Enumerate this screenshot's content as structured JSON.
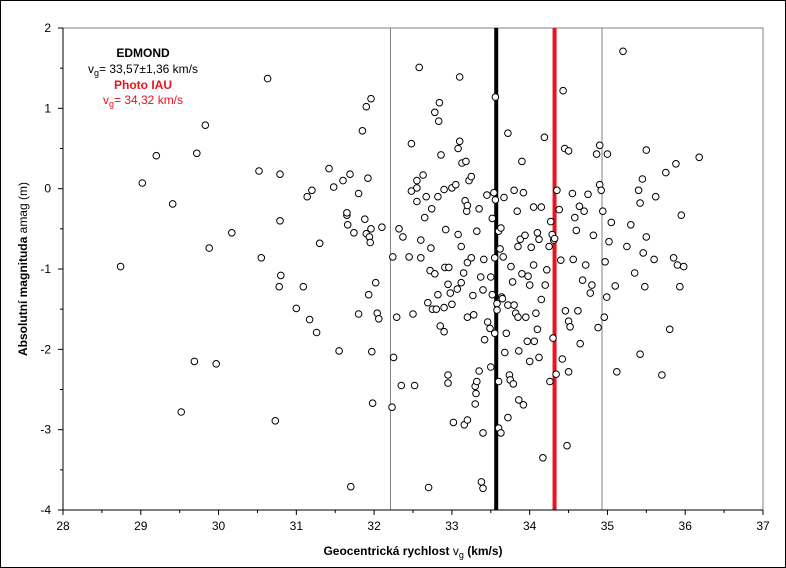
{
  "chart_data": {
    "type": "scatter",
    "xlabel": "Geocentrická rychlost",
    "xlabel_sym": "v",
    "xlabel_sub": "g",
    "xlabel_unit": "(km/s)",
    "ylabel": "Absolutní magnituda",
    "ylabel_sym": "amag",
    "ylabel_unit": "(m)",
    "xlim": [
      28,
      37
    ],
    "ylim": [
      -4,
      2
    ],
    "xticks": [
      "28",
      "29",
      "30",
      "31",
      "32",
      "33",
      "34",
      "35",
      "36",
      "37"
    ],
    "yticks": [
      "-4",
      "-3",
      "-2",
      "-1",
      "0",
      "1",
      "2"
    ],
    "grid": false,
    "vlines": [
      {
        "x": 32.21,
        "color": "#808080",
        "label": "edmond-minus-sigma"
      },
      {
        "x": 33.57,
        "color": "#000000",
        "label": "edmond-mean"
      },
      {
        "x": 34.32,
        "color": "#e8141e",
        "label": "photo-iau"
      },
      {
        "x": 34.93,
        "color": "#808080",
        "label": "edmond-plus-sigma"
      }
    ],
    "annotations": {
      "edmond_title": "EDMOND",
      "edmond_sym": "v",
      "edmond_sub": "g",
      "edmond_value": "= 33,57±1,36  km/s",
      "iau_title": "Photo IAU",
      "iau_sym": "v",
      "iau_sub": "g",
      "iau_value": "=  34,32 km/s"
    },
    "points": [
      [
        28.74,
        -0.97
      ],
      [
        29.02,
        0.07
      ],
      [
        29.2,
        0.41
      ],
      [
        29.41,
        -0.19
      ],
      [
        29.52,
        -2.78
      ],
      [
        29.69,
        -2.15
      ],
      [
        29.72,
        0.44
      ],
      [
        29.83,
        0.79
      ],
      [
        29.88,
        -0.74
      ],
      [
        29.97,
        -2.18
      ],
      [
        30.17,
        -0.55
      ],
      [
        30.52,
        0.22
      ],
      [
        30.55,
        -0.86
      ],
      [
        30.63,
        1.37
      ],
      [
        30.73,
        -2.89
      ],
      [
        30.79,
        0.18
      ],
      [
        30.79,
        -0.4
      ],
      [
        30.8,
        -1.08
      ],
      [
        30.78,
        -1.22
      ],
      [
        31.0,
        -1.49
      ],
      [
        31.09,
        -1.22
      ],
      [
        31.14,
        -0.1
      ],
      [
        31.17,
        -1.63
      ],
      [
        31.2,
        -0.02
      ],
      [
        31.26,
        -1.79
      ],
      [
        31.3,
        -0.68
      ],
      [
        31.42,
        0.25
      ],
      [
        31.48,
        0.02
      ],
      [
        31.55,
        -2.02
      ],
      [
        31.6,
        0.1
      ],
      [
        31.65,
        -0.33
      ],
      [
        31.65,
        -0.3
      ],
      [
        31.66,
        -0.45
      ],
      [
        31.69,
        0.18
      ],
      [
        31.7,
        -3.71
      ],
      [
        31.74,
        -0.55
      ],
      [
        31.8,
        -1.56
      ],
      [
        31.8,
        -0.06
      ],
      [
        31.85,
        0.72
      ],
      [
        31.88,
        -0.38
      ],
      [
        31.9,
        -0.56
      ],
      [
        31.9,
        1.02
      ],
      [
        31.92,
        0.13
      ],
      [
        31.93,
        -1.32
      ],
      [
        31.94,
        -0.6
      ],
      [
        31.96,
        1.12
      ],
      [
        31.95,
        -0.67
      ],
      [
        31.96,
        -0.5
      ],
      [
        31.97,
        -2.03
      ],
      [
        31.98,
        -2.67
      ],
      [
        32.02,
        -1.17
      ],
      [
        32.04,
        -1.55
      ],
      [
        32.06,
        -1.62
      ],
      [
        32.1,
        -0.48
      ],
      [
        32.23,
        -2.72
      ],
      [
        32.24,
        -0.85
      ],
      [
        32.25,
        -2.1
      ],
      [
        32.29,
        -1.6
      ],
      [
        32.32,
        -0.5
      ],
      [
        32.35,
        -2.45
      ],
      [
        32.37,
        -0.6
      ],
      [
        32.45,
        -0.85
      ],
      [
        32.48,
        0.56
      ],
      [
        32.48,
        -0.03
      ],
      [
        32.5,
        -1.56
      ],
      [
        32.52,
        -2.45
      ],
      [
        32.55,
        -0.16
      ],
      [
        32.55,
        0.01
      ],
      [
        32.55,
        0.1
      ],
      [
        32.58,
        1.51
      ],
      [
        32.6,
        -0.64
      ],
      [
        32.6,
        -0.86
      ],
      [
        32.63,
        0.17
      ],
      [
        32.65,
        -0.36
      ],
      [
        32.67,
        -0.1
      ],
      [
        32.69,
        -1.42
      ],
      [
        32.7,
        -3.72
      ],
      [
        32.72,
        -1.02
      ],
      [
        32.73,
        -0.74
      ],
      [
        32.74,
        -0.25
      ],
      [
        32.75,
        -1.5
      ],
      [
        32.78,
        -1.06
      ],
      [
        32.78,
        0.95
      ],
      [
        32.8,
        -1.5
      ],
      [
        32.82,
        -1.32
      ],
      [
        32.82,
        -0.1
      ],
      [
        32.83,
        0.84
      ],
      [
        32.84,
        1.07
      ],
      [
        32.85,
        -1.71
      ],
      [
        32.86,
        0.42
      ],
      [
        32.9,
        -0.01
      ],
      [
        32.9,
        -1.78
      ],
      [
        32.9,
        -1.48
      ],
      [
        32.91,
        -0.98
      ],
      [
        32.92,
        -0.51
      ],
      [
        32.95,
        -2.32
      ],
      [
        32.95,
        -1.19
      ],
      [
        32.95,
        -2.42
      ],
      [
        32.96,
        -0.98
      ],
      [
        32.98,
        -1.3
      ],
      [
        33.0,
        0.01
      ],
      [
        33.0,
        -1.44
      ],
      [
        33.02,
        -2.91
      ],
      [
        33.05,
        0.05
      ],
      [
        33.07,
        -1.25
      ],
      [
        33.08,
        0.5
      ],
      [
        33.08,
        -0.57
      ],
      [
        33.1,
        0.59
      ],
      [
        33.1,
        1.39
      ],
      [
        33.12,
        -0.72
      ],
      [
        33.12,
        -1.17
      ],
      [
        33.13,
        0.32
      ],
      [
        33.15,
        -1.05
      ],
      [
        33.16,
        -2.94
      ],
      [
        33.17,
        -0.15
      ],
      [
        33.18,
        0.34
      ],
      [
        33.19,
        -0.28
      ],
      [
        33.2,
        -2.88
      ],
      [
        33.2,
        -0.21
      ],
      [
        33.2,
        -1.6
      ],
      [
        33.2,
        -0.92
      ],
      [
        33.22,
        0.1
      ],
      [
        33.25,
        -0.86
      ],
      [
        33.25,
        0.15
      ],
      [
        33.27,
        -1.33
      ],
      [
        33.28,
        -1.57
      ],
      [
        33.3,
        -2.46
      ],
      [
        33.3,
        -2.68
      ],
      [
        33.31,
        -2.55
      ],
      [
        33.32,
        -0.53
      ],
      [
        33.32,
        -2.4
      ],
      [
        33.35,
        -2.27
      ],
      [
        33.35,
        -0.25
      ],
      [
        33.37,
        -1.1
      ],
      [
        33.38,
        -3.65
      ],
      [
        33.4,
        -3.04
      ],
      [
        33.4,
        -1.26
      ],
      [
        33.4,
        -3.73
      ],
      [
        33.41,
        -0.88
      ],
      [
        33.42,
        -1.88
      ],
      [
        33.45,
        -0.08
      ],
      [
        33.46,
        -1.66
      ],
      [
        33.49,
        -1.74
      ],
      [
        33.5,
        -1.1
      ],
      [
        33.5,
        -2.22
      ],
      [
        33.52,
        -1.32
      ],
      [
        33.52,
        -0.37
      ],
      [
        33.54,
        -0.05
      ],
      [
        33.55,
        -0.86
      ],
      [
        33.55,
        -1.8
      ],
      [
        33.56,
        1.14
      ],
      [
        33.56,
        -0.14
      ],
      [
        33.58,
        -1.43
      ],
      [
        33.58,
        -1.51
      ],
      [
        33.6,
        -0.53
      ],
      [
        33.6,
        -2.4
      ],
      [
        33.6,
        -2.98
      ],
      [
        33.62,
        -0.75
      ],
      [
        33.63,
        -0.49
      ],
      [
        33.63,
        -3.04
      ],
      [
        33.64,
        -1.35
      ],
      [
        33.65,
        -1.37
      ],
      [
        33.66,
        -0.85
      ],
      [
        33.67,
        -0.11
      ],
      [
        33.68,
        -2.04
      ],
      [
        33.7,
        -1.8
      ],
      [
        33.72,
        0.69
      ],
      [
        33.72,
        -1.45
      ],
      [
        33.72,
        -2.85
      ],
      [
        33.74,
        -2.32
      ],
      [
        33.75,
        -2.38
      ],
      [
        33.76,
        -0.97
      ],
      [
        33.78,
        -1.16
      ],
      [
        33.79,
        -2.43
      ],
      [
        33.8,
        -1.45
      ],
      [
        33.8,
        -0.02
      ],
      [
        33.82,
        -1.55
      ],
      [
        33.84,
        -0.28
      ],
      [
        33.85,
        -1.6
      ],
      [
        33.85,
        -0.72
      ],
      [
        33.86,
        -2.63
      ],
      [
        33.86,
        -2.02
      ],
      [
        33.88,
        -0.63
      ],
      [
        33.9,
        0.34
      ],
      [
        33.9,
        -1.06
      ],
      [
        33.92,
        -2.69
      ],
      [
        33.92,
        -0.05
      ],
      [
        33.94,
        -0.58
      ],
      [
        33.95,
        -1.6
      ],
      [
        33.97,
        -1.9
      ],
      [
        33.98,
        -1.09
      ],
      [
        34.0,
        -1.2
      ],
      [
        34.0,
        -2.15
      ],
      [
        34.02,
        -0.73
      ],
      [
        34.05,
        -0.95
      ],
      [
        34.05,
        -0.23
      ],
      [
        34.06,
        -1.9
      ],
      [
        34.08,
        -1.55
      ],
      [
        34.1,
        -0.55
      ],
      [
        34.1,
        -1.75
      ],
      [
        34.12,
        -2.1
      ],
      [
        34.12,
        -0.63
      ],
      [
        34.15,
        -0.23
      ],
      [
        34.15,
        -1.38
      ],
      [
        34.17,
        -3.35
      ],
      [
        34.19,
        0.64
      ],
      [
        34.2,
        -1.2
      ],
      [
        34.22,
        -1.01
      ],
      [
        34.25,
        -0.72
      ],
      [
        34.26,
        -2.4
      ],
      [
        34.27,
        -0.41
      ],
      [
        34.29,
        -0.57
      ],
      [
        34.3,
        -1.86
      ],
      [
        34.31,
        -0.64
      ],
      [
        34.32,
        -0.62
      ],
      [
        34.34,
        -2.31
      ],
      [
        34.35,
        -0.02
      ],
      [
        34.38,
        -0.26
      ],
      [
        34.4,
        -0.89
      ],
      [
        34.42,
        -2.12
      ],
      [
        34.43,
        1.22
      ],
      [
        34.45,
        0.5
      ],
      [
        34.46,
        -1.52
      ],
      [
        34.48,
        -3.2
      ],
      [
        34.5,
        -1.65
      ],
      [
        34.5,
        -2.28
      ],
      [
        34.5,
        0.47
      ],
      [
        34.52,
        -1.72
      ],
      [
        34.55,
        -0.06
      ],
      [
        34.56,
        -0.88
      ],
      [
        34.58,
        -0.36
      ],
      [
        34.6,
        -0.52
      ],
      [
        34.62,
        -1.52
      ],
      [
        34.64,
        -0.22
      ],
      [
        34.65,
        -1.93
      ],
      [
        34.68,
        -1.14
      ],
      [
        34.7,
        -0.28
      ],
      [
        34.72,
        -0.95
      ],
      [
        34.75,
        -0.07
      ],
      [
        34.78,
        -1.3
      ],
      [
        34.8,
        -1.2
      ],
      [
        34.82,
        -0.58
      ],
      [
        34.86,
        0.43
      ],
      [
        34.88,
        -1.73
      ],
      [
        34.9,
        0.05
      ],
      [
        34.9,
        0.54
      ],
      [
        34.92,
        -0.02
      ],
      [
        34.94,
        -0.28
      ],
      [
        34.96,
        -1.6
      ],
      [
        34.97,
        -0.91
      ],
      [
        34.99,
        -1.35
      ],
      [
        35.0,
        0.43
      ],
      [
        35.02,
        -0.66
      ],
      [
        35.05,
        -0.42
      ],
      [
        35.1,
        -1.21
      ],
      [
        35.12,
        -2.28
      ],
      [
        35.2,
        1.71
      ],
      [
        35.25,
        -0.72
      ],
      [
        35.3,
        -0.45
      ],
      [
        35.35,
        -1.05
      ],
      [
        35.4,
        -0.02
      ],
      [
        35.42,
        -2.06
      ],
      [
        35.42,
        -0.18
      ],
      [
        35.45,
        0.12
      ],
      [
        35.46,
        -0.8
      ],
      [
        35.48,
        -1.22
      ],
      [
        35.5,
        -0.6
      ],
      [
        35.5,
        0.48
      ],
      [
        35.6,
        -0.88
      ],
      [
        35.62,
        -0.1
      ],
      [
        35.7,
        -2.32
      ],
      [
        35.75,
        0.2
      ],
      [
        35.8,
        -1.75
      ],
      [
        35.85,
        -0.86
      ],
      [
        35.88,
        0.31
      ],
      [
        35.9,
        -0.95
      ],
      [
        35.93,
        -1.22
      ],
      [
        35.95,
        -0.33
      ],
      [
        35.98,
        -0.97
      ],
      [
        36.18,
        0.39
      ]
    ]
  }
}
